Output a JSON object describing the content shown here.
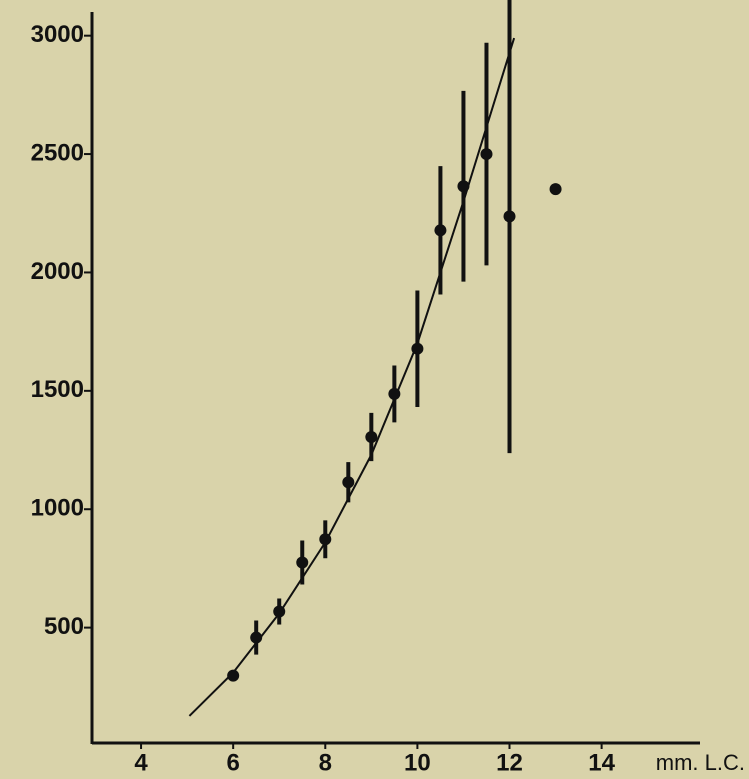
{
  "chart_data": {
    "type": "scatter",
    "x": [
      6,
      6.5,
      7,
      7.5,
      8,
      8.5,
      9,
      9.5,
      10,
      10.5,
      11,
      11.5,
      12,
      13
    ],
    "values": [
      297,
      458,
      568,
      775,
      873,
      1114,
      1305,
      1487,
      1678,
      2178,
      2364,
      2500,
      2237,
      2352
    ],
    "errors": [
      null,
      72,
      55,
      93,
      80,
      85,
      102,
      120,
      246,
      271,
      403,
      470,
      1000,
      null
    ],
    "fit": {
      "x": [
        5.05,
        6,
        7,
        8,
        9,
        10,
        11,
        12.1
      ],
      "values": [
        127,
        310,
        560,
        860,
        1230,
        1700,
        2300,
        2990
      ]
    },
    "color": "#111111",
    "xlabel": "mm. L.C.",
    "xlim": [
      3,
      17.2
    ],
    "ylim": [
      0,
      3100
    ],
    "xticks": [
      4,
      6,
      8,
      10,
      12,
      14
    ],
    "yticks": [
      500,
      1000,
      1500,
      2000,
      2500,
      3000
    ]
  }
}
